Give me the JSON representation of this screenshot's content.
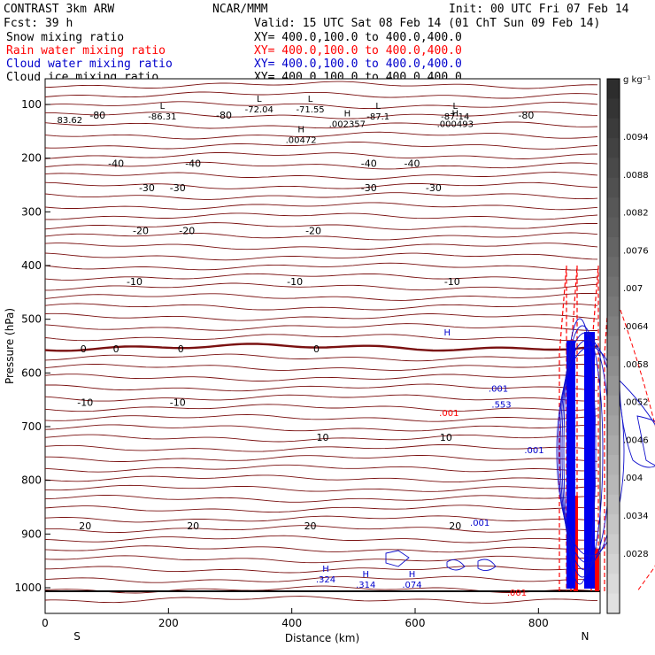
{
  "header": {
    "model": "CONTRAST  3km ARW",
    "org": "NCAR/MMM",
    "init": "Init: 00 UTC Fri 07 Feb 14",
    "fcst": "Fcst:   39 h",
    "valid": "Valid: 15 UTC Sat 08 Feb 14 (01 ChT Sun 09 Feb 14)"
  },
  "fields": [
    {
      "name": "Snow mixing ratio",
      "xy": "XY= 400.0,100.0 to 400.0,400.0",
      "color": "#000000"
    },
    {
      "name": "Rain water mixing ratio",
      "xy": "XY= 400.0,100.0 to 400.0,400.0",
      "color": "#ff0000"
    },
    {
      "name": "Cloud water mixing ratio",
      "xy": "XY= 400.0,100.0 to 400.0,400.0",
      "color": "#0000cc"
    },
    {
      "name": "Cloud ice mixing ratio",
      "xy": "XY= 400.0,100.0 to 400.0,400.0",
      "color": "#000000"
    }
  ],
  "colorbar": {
    "unit": "g kg⁻¹",
    "labels": [
      ".0094",
      ".0088",
      ".0082",
      ".0076",
      ".007",
      ".0064",
      ".0058",
      ".0052",
      ".0046",
      ".004",
      ".0034",
      ".0028"
    ],
    "levels": [
      0.0094,
      0.0088,
      0.0082,
      0.0076,
      0.007,
      0.0064,
      0.0058,
      0.0052,
      0.0046,
      0.004,
      0.0034,
      0.0028
    ]
  },
  "chart_data": {
    "type": "contour",
    "xlabel": "Distance (km)",
    "ylabel": "Pressure (hPa)",
    "xlim": [
      0,
      900
    ],
    "ylim": [
      1050,
      50
    ],
    "xticks": [
      0,
      200,
      400,
      600,
      800
    ],
    "yticks": [
      100,
      200,
      300,
      400,
      500,
      600,
      700,
      800,
      900,
      1000
    ],
    "x_end_labels": {
      "left": "S",
      "right": "N"
    },
    "temperature_contours": [
      {
        "label": "-80",
        "p": 120,
        "x": [
          85,
          290,
          780
        ]
      },
      {
        "label": "-40",
        "p": 210,
        "x": [
          115,
          240,
          525,
          595
        ]
      },
      {
        "label": "-30",
        "p": 255,
        "x": [
          165,
          215,
          525,
          630
        ]
      },
      {
        "label": "-20",
        "p": 335,
        "x": [
          155,
          230,
          435
        ]
      },
      {
        "label": "-10",
        "p": 430,
        "x": [
          145,
          405,
          660
        ]
      },
      {
        "label": "0",
        "p": 555,
        "x": [
          62,
          115,
          220,
          440
        ]
      },
      {
        "label": "-10",
        "p": 655,
        "x": [
          65,
          215
        ]
      },
      {
        "label": "10",
        "p": 720,
        "x": [
          450,
          650
        ]
      },
      {
        "label": "20",
        "p": 885,
        "x": [
          65,
          240,
          430,
          665
        ]
      }
    ],
    "extrema_labels": [
      {
        "type": "L",
        "value": "-72.04",
        "x": 347,
        "p": 100
      },
      {
        "type": "L",
        "value": "-71.55",
        "x": 430,
        "p": 100
      },
      {
        "type": "L",
        "value": "-86.31",
        "x": 190,
        "p": 113
      },
      {
        "type": "L",
        "value": "-87.1",
        "x": 540,
        "p": 113
      },
      {
        "type": "L",
        "value": "-87.14",
        "x": 665,
        "p": 113
      },
      {
        "type": "",
        "value": "83.62",
        "x": 40,
        "p": 120
      },
      {
        "type": "H",
        "value": ".002357",
        "x": 490,
        "p": 127
      },
      {
        "type": "H",
        "value": ".000493",
        "x": 665,
        "p": 127
      },
      {
        "type": "H",
        "value": ".00472",
        "x": 415,
        "p": 157
      }
    ],
    "cloud_labels": [
      {
        "type": "H",
        "value": "",
        "x": 652,
        "p": 535
      },
      {
        "type": "",
        "value": ".001",
        "x": 735,
        "p": 620
      },
      {
        "type": "",
        "value": ".553",
        "x": 740,
        "p": 650
      },
      {
        "type": "",
        "value": ".001",
        "x": 793,
        "p": 735
      },
      {
        "type": "",
        "value": ".001",
        "x": 705,
        "p": 870
      },
      {
        "type": "H",
        "value": ".324",
        "x": 455,
        "p": 975
      },
      {
        "type": "H",
        "value": ".314",
        "x": 520,
        "p": 985
      },
      {
        "type": "H",
        "value": ".074",
        "x": 595,
        "p": 985
      }
    ],
    "rain_labels": [
      {
        "type": "",
        "value": ".001",
        "x": 655,
        "p": 665
      },
      {
        "type": "",
        "value": ".001",
        "x": 765,
        "p": 1000
      }
    ]
  }
}
